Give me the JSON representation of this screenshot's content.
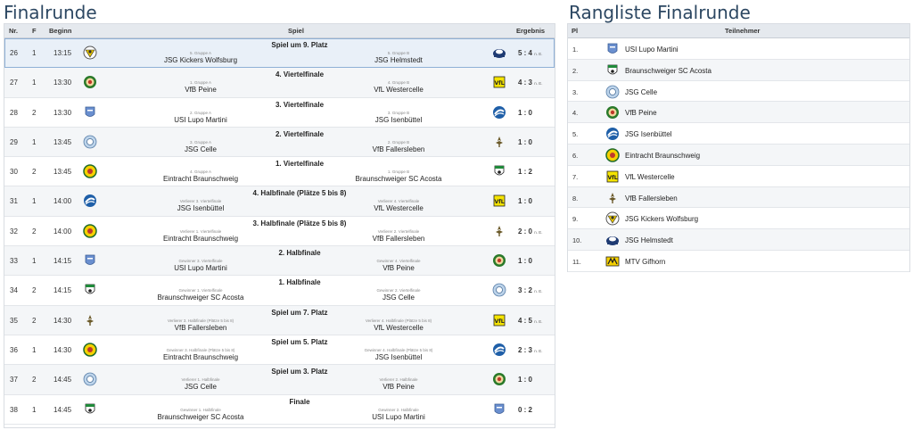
{
  "left_title": "Finalrunde",
  "right_title": "Rangliste Finalrunde",
  "games_headers": {
    "nr": "Nr.",
    "f": "F",
    "time": "Beginn",
    "game": "Spiel",
    "result": "Ergebnis"
  },
  "rank_headers": {
    "pl": "Pl",
    "team": "Teilnehmer"
  },
  "games": [
    {
      "nr": "26",
      "f": "1",
      "time": "13:15",
      "round": "Spiel um 9. Platz",
      "home_sub": "5. Gruppe A",
      "home": "JSG Kickers Wolfsburg",
      "away_sub": "5. Gruppe B",
      "away": "JSG Helmstedt",
      "home_icon": "kickers-wolfsburg-crest-icon",
      "away_icon": "helmstedt-crest-icon",
      "result": "5 : 4",
      "suffix": "n. E."
    },
    {
      "nr": "27",
      "f": "1",
      "time": "13:30",
      "round": "4. Viertelfinale",
      "home_sub": "1. Gruppe A",
      "home": "VfB Peine",
      "away_sub": "4. Gruppe B",
      "away": "VfL Westercelle",
      "home_icon": "vfb-peine-crest-icon",
      "away_icon": "vfl-westercelle-crest-icon",
      "result": "4 : 3",
      "suffix": "n. E."
    },
    {
      "nr": "28",
      "f": "2",
      "time": "13:30",
      "round": "3. Viertelfinale",
      "home_sub": "2. Gruppe A",
      "home": "USI Lupo Martini",
      "away_sub": "3. Gruppe B",
      "away": "JSG Isenbüttel",
      "home_icon": "lupo-martini-crest-icon",
      "away_icon": "isenbuettel-crest-icon",
      "result": "1 : 0",
      "suffix": ""
    },
    {
      "nr": "29",
      "f": "1",
      "time": "13:45",
      "round": "2. Viertelfinale",
      "home_sub": "3. Gruppe A",
      "home": "JSG Celle",
      "away_sub": "2. Gruppe B",
      "away": "VfB Fallersleben",
      "home_icon": "jsg-celle-crest-icon",
      "away_icon": "fallersleben-crest-icon",
      "result": "1 : 0",
      "suffix": ""
    },
    {
      "nr": "30",
      "f": "2",
      "time": "13:45",
      "round": "1. Viertelfinale",
      "home_sub": "4. Gruppe A",
      "home": "Eintracht Braunschweig",
      "away_sub": "1. Gruppe B",
      "away": "Braunschweiger SC Acosta",
      "home_icon": "eintracht-braunschweig-crest-icon",
      "away_icon": "bsc-acosta-crest-icon",
      "result": "1 : 2",
      "suffix": ""
    },
    {
      "nr": "31",
      "f": "1",
      "time": "14:00",
      "round": "4. Halbfinale (Plätze 5 bis 8)",
      "home_sub": "Verlierer 3. Viertelfinale",
      "home": "JSG Isenbüttel",
      "away_sub": "Verlierer 4. Viertelfinale",
      "away": "VfL Westercelle",
      "home_icon": "isenbuettel-crest-icon",
      "away_icon": "vfl-westercelle-crest-icon",
      "result": "1 : 0",
      "suffix": ""
    },
    {
      "nr": "32",
      "f": "2",
      "time": "14:00",
      "round": "3. Halbfinale (Plätze 5 bis 8)",
      "home_sub": "Verlierer 1. Viertelfinale",
      "home": "Eintracht Braunschweig",
      "away_sub": "Verlierer 2. Viertelfinale",
      "away": "VfB Fallersleben",
      "home_icon": "eintracht-braunschweig-crest-icon",
      "away_icon": "fallersleben-crest-icon",
      "result": "2 : 0",
      "suffix": "n. E."
    },
    {
      "nr": "33",
      "f": "1",
      "time": "14:15",
      "round": "2. Halbfinale",
      "home_sub": "Gewinner 3. Viertelfinale",
      "home": "USI Lupo Martini",
      "away_sub": "Gewinner 4. Viertelfinale",
      "away": "VfB Peine",
      "home_icon": "lupo-martini-crest-icon",
      "away_icon": "vfb-peine-crest-icon",
      "result": "1 : 0",
      "suffix": ""
    },
    {
      "nr": "34",
      "f": "2",
      "time": "14:15",
      "round": "1. Halbfinale",
      "home_sub": "Gewinner 1. Viertelfinale",
      "home": "Braunschweiger SC Acosta",
      "away_sub": "Gewinner 2. Viertelfinale",
      "away": "JSG Celle",
      "home_icon": "bsc-acosta-crest-icon",
      "away_icon": "jsg-celle-crest-icon",
      "result": "3 : 2",
      "suffix": "n. E."
    },
    {
      "nr": "35",
      "f": "2",
      "time": "14:30",
      "round": "Spiel um 7. Platz",
      "home_sub": "Verlierer 3. Halbfinale (Plätze 5 bis 8)",
      "home": "VfB Fallersleben",
      "away_sub": "Verlierer 4. Halbfinale (Plätze 5 bis 8)",
      "away": "VfL Westercelle",
      "home_icon": "fallersleben-crest-icon",
      "away_icon": "vfl-westercelle-crest-icon",
      "result": "4 : 5",
      "suffix": "n. E."
    },
    {
      "nr": "36",
      "f": "1",
      "time": "14:30",
      "round": "Spiel um 5. Platz",
      "home_sub": "Gewinner 3. Halbfinale (Plätze 5 bis 8)",
      "home": "Eintracht Braunschweig",
      "away_sub": "Gewinner 4. Halbfinale (Plätze 5 bis 8)",
      "away": "JSG Isenbüttel",
      "home_icon": "eintracht-braunschweig-crest-icon",
      "away_icon": "isenbuettel-crest-icon",
      "result": "2 : 3",
      "suffix": "n. E."
    },
    {
      "nr": "37",
      "f": "2",
      "time": "14:45",
      "round": "Spiel um 3. Platz",
      "home_sub": "Verlierer 1. Halbfinale",
      "home": "JSG Celle",
      "away_sub": "Verlierer 2. Halbfinale",
      "away": "VfB Peine",
      "home_icon": "jsg-celle-crest-icon",
      "away_icon": "vfb-peine-crest-icon",
      "result": "1 : 0",
      "suffix": ""
    },
    {
      "nr": "38",
      "f": "1",
      "time": "14:45",
      "round": "Finale",
      "home_sub": "Gewinner 1. Halbfinale",
      "home": "Braunschweiger SC Acosta",
      "away_sub": "Gewinner 2. Halbfinale",
      "away": "USI Lupo Martini",
      "home_icon": "bsc-acosta-crest-icon",
      "away_icon": "lupo-martini-crest-icon",
      "result": "0 : 2",
      "suffix": ""
    }
  ],
  "ranking": [
    {
      "pl": "1.",
      "team": "USI Lupo Martini",
      "icon": "lupo-martini-crest-icon"
    },
    {
      "pl": "2.",
      "team": "Braunschweiger SC Acosta",
      "icon": "bsc-acosta-crest-icon"
    },
    {
      "pl": "3.",
      "team": "JSG Celle",
      "icon": "jsg-celle-crest-icon"
    },
    {
      "pl": "4.",
      "team": "VfB Peine",
      "icon": "vfb-peine-crest-icon"
    },
    {
      "pl": "5.",
      "team": "JSG Isenbüttel",
      "icon": "isenbuettel-crest-icon"
    },
    {
      "pl": "6.",
      "team": "Eintracht Braunschweig",
      "icon": "eintracht-braunschweig-crest-icon"
    },
    {
      "pl": "7.",
      "team": "VfL Westercelle",
      "icon": "vfl-westercelle-crest-icon"
    },
    {
      "pl": "8.",
      "team": "VfB Fallersleben",
      "icon": "fallersleben-crest-icon"
    },
    {
      "pl": "9.",
      "team": "JSG Kickers Wolfsburg",
      "icon": "kickers-wolfsburg-crest-icon"
    },
    {
      "pl": "10.",
      "team": "JSG Helmstedt",
      "icon": "helmstedt-crest-icon"
    },
    {
      "pl": "11.",
      "team": "MTV Gifhorn",
      "icon": "mtv-gifhorn-crest-icon"
    }
  ],
  "colors": {
    "title": "#2c4762",
    "header_bg": "#e5e9ee",
    "row_alt": "#f4f6f8",
    "selected_row": "#e9f0f8"
  }
}
